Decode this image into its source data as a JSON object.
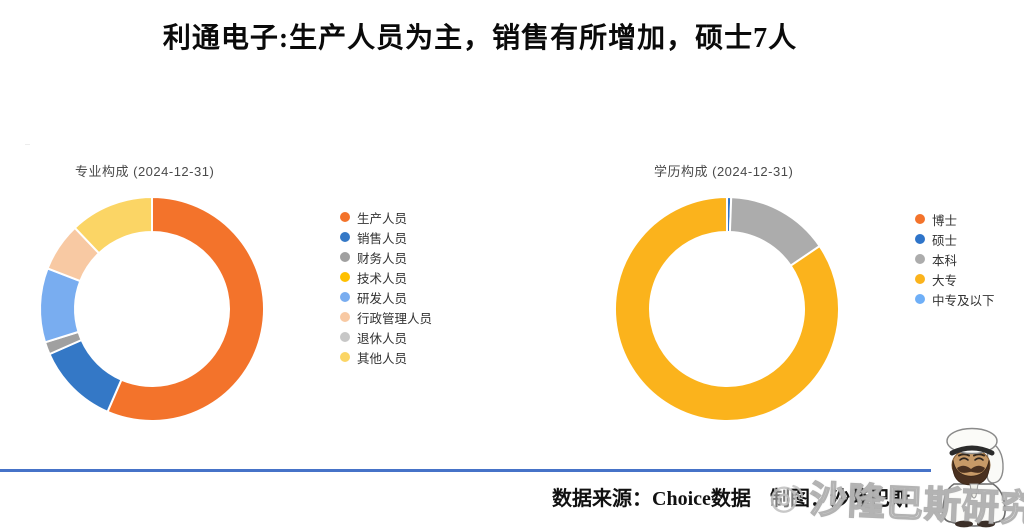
{
  "page_title": "利通电子:生产人员为主，销售有所增加，硕士7人",
  "chart_data": [
    {
      "title": "专业构成 (2024-12-31)",
      "type": "pie",
      "shape": "donut",
      "unit": "percent",
      "legend_position": "right",
      "categories": [
        "生产人员",
        "销售人员",
        "财务人员",
        "技术人员",
        "研发人员",
        "行政管理人员",
        "退休人员",
        "其他人员"
      ],
      "values": [
        56.5,
        11.9,
        1.8,
        0,
        10.7,
        7.0,
        0,
        12.1
      ],
      "colors": [
        "#F3732B",
        "#3478C6",
        "#A0A0A0",
        "#FFC000",
        "#79ADF0",
        "#F8C9A3",
        "#C7C7C7",
        "#FBD565"
      ]
    },
    {
      "title": "学历构成 (2024-12-31)",
      "type": "pie",
      "shape": "donut",
      "unit": "percent",
      "legend_position": "right",
      "categories": [
        "博士",
        "硕士",
        "本科",
        "大专",
        "中专及以下"
      ],
      "values": [
        0,
        0.6,
        14.9,
        84.5,
        0
      ],
      "colors": [
        "#F3732B",
        "#2E74C9",
        "#ACACAC",
        "#FBB31C",
        "#6FAFF7"
      ]
    }
  ],
  "footer": {
    "source_label": "数据来源：Choice数据",
    "credit_label": "制图：沙隆巴斯",
    "divider_color": "#4673C8"
  },
  "watermark": {
    "text": "沙隆巴斯研究",
    "icon": "weibo-swirl-icon"
  },
  "styles": {
    "title_color": "#0a0a0a",
    "chart_title_color": "#4a4a4a",
    "legend_text_color": "#333333"
  }
}
